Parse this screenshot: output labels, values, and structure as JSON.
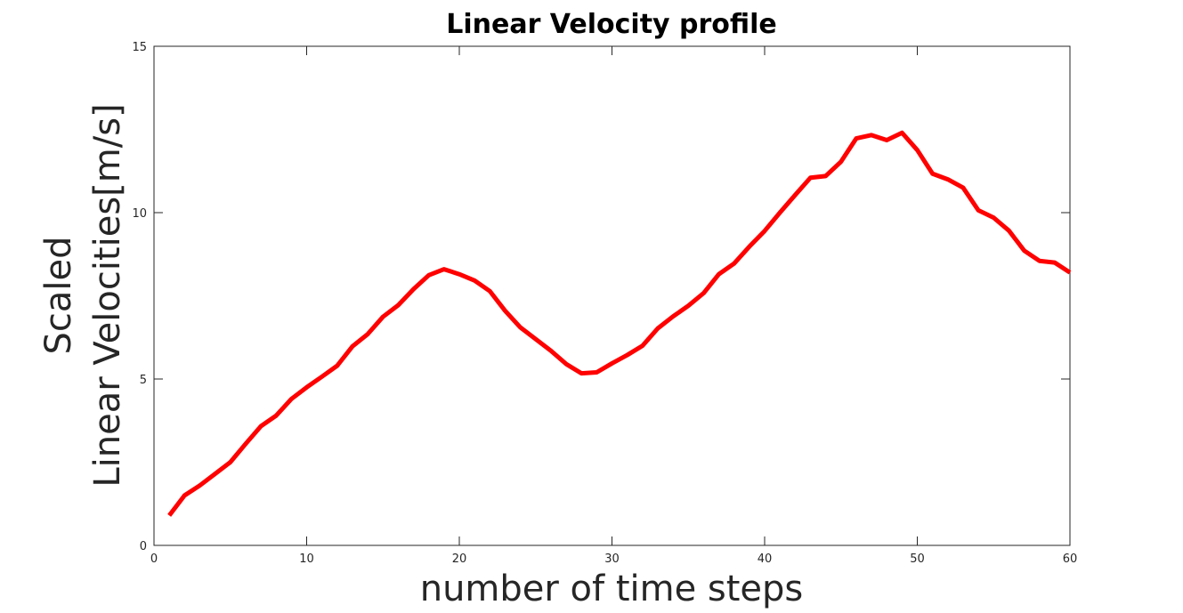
{
  "chart_data": {
    "type": "line",
    "title": "Linear Velocity profile",
    "xlabel": "number of time steps",
    "ylabel_lines": [
      "Scaled",
      "Linear Velocities[m/s]"
    ],
    "xlim": [
      0,
      60
    ],
    "ylim": [
      0,
      15
    ],
    "xticks": [
      0,
      10,
      20,
      30,
      40,
      50,
      60
    ],
    "yticks": [
      0,
      5,
      10,
      15
    ],
    "grid": false,
    "legend": "none",
    "series": [
      {
        "color": "#ff0000",
        "x": [
          1,
          2,
          3,
          4,
          5,
          6,
          7,
          8,
          9,
          10,
          11,
          12,
          13,
          14,
          15,
          16,
          17,
          18,
          19,
          20,
          21,
          22,
          23,
          24,
          25,
          26,
          27,
          28,
          29,
          30,
          31,
          32,
          33,
          34,
          35,
          36,
          37,
          38,
          39,
          40,
          41,
          42,
          43,
          44,
          45,
          46,
          47,
          48,
          49,
          50,
          51,
          52,
          53,
          54,
          55,
          56,
          57,
          58,
          59,
          60
        ],
        "y": [
          0.9,
          1.5,
          1.8,
          2.15,
          2.5,
          3.05,
          3.58,
          3.9,
          4.4,
          4.75,
          5.07,
          5.4,
          5.98,
          6.35,
          6.87,
          7.22,
          7.7,
          8.12,
          8.3,
          8.15,
          7.96,
          7.64,
          7.05,
          6.55,
          6.2,
          5.85,
          5.45,
          5.17,
          5.2,
          5.47,
          5.72,
          6.0,
          6.52,
          6.88,
          7.2,
          7.58,
          8.15,
          8.47,
          8.98,
          9.45,
          10.0,
          10.53,
          11.05,
          11.1,
          11.53,
          12.23,
          12.33,
          12.18,
          12.4,
          11.88,
          11.17,
          11.0,
          10.75,
          10.07,
          9.85,
          9.46,
          8.86,
          8.55,
          8.5,
          8.2
        ]
      }
    ]
  }
}
